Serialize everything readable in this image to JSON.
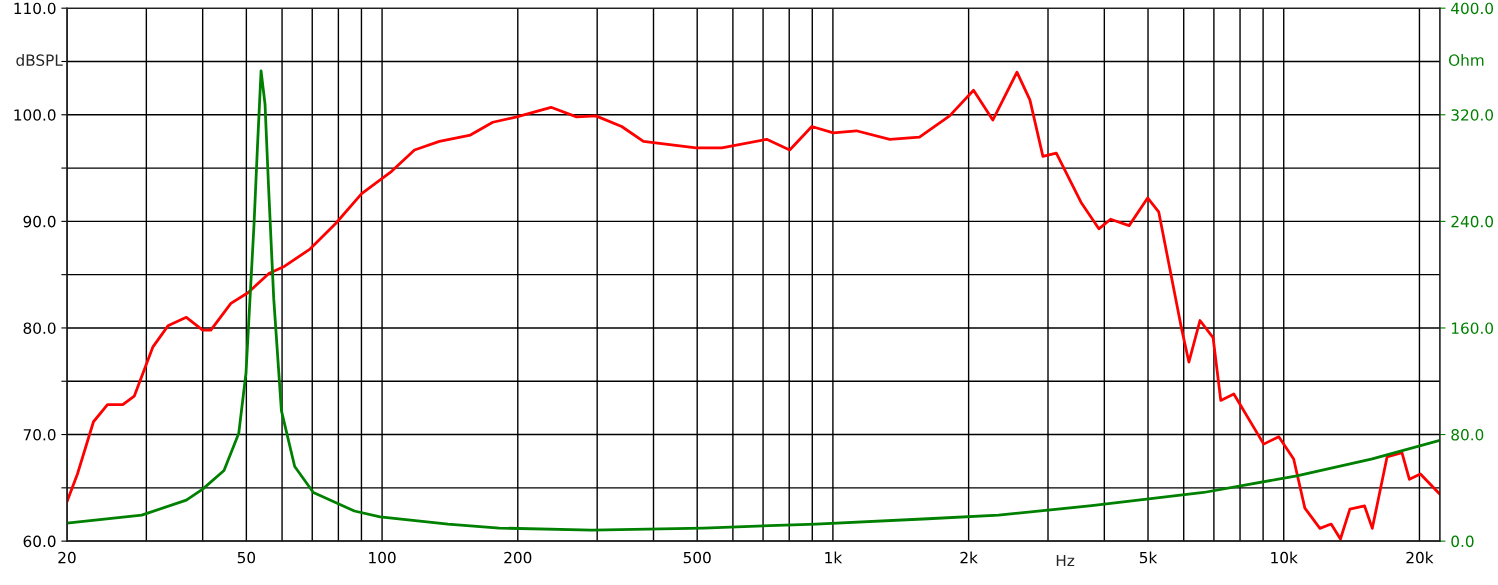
{
  "chart_data": {
    "type": "line",
    "xlabel": "Hz",
    "ylabel": "dBSPL",
    "y2label": "Ohm",
    "log": "x",
    "grid": true,
    "line_style": "solid",
    "xlim": [
      20,
      22200
    ],
    "xticks": [
      20,
      {
        "value": 30,
        "label": null
      },
      {
        "value": 40,
        "label": null
      },
      50,
      {
        "value": 60,
        "label": null
      },
      {
        "value": 70,
        "label": null
      },
      {
        "value": 80,
        "label": null
      },
      {
        "value": 90,
        "label": null
      },
      100,
      200,
      {
        "value": 300,
        "label": null
      },
      {
        "value": 400,
        "label": null
      },
      500,
      {
        "value": 600,
        "label": null
      },
      {
        "value": 700,
        "label": null
      },
      {
        "value": 800,
        "label": null
      },
      {
        "value": 900,
        "label": null
      },
      {
        "value": 1000,
        "label": "1k"
      },
      {
        "value": 2000,
        "label": "2k"
      },
      {
        "value": 3000,
        "label": null
      },
      {
        "value": 4000,
        "label": null
      },
      {
        "value": 5000,
        "label": "5k"
      },
      {
        "value": 6000,
        "label": null
      },
      {
        "value": 7000,
        "label": null
      },
      {
        "value": 8000,
        "label": null
      },
      {
        "value": 9000,
        "label": null
      },
      {
        "value": 10000,
        "label": "10k"
      },
      {
        "value": 20000,
        "label": "20k"
      }
    ],
    "ylim": [
      60,
      110
    ],
    "yticks": [
      {
        "value": 60,
        "label": "60.0"
      },
      {
        "value": 65,
        "label": null
      },
      {
        "value": 70,
        "label": "70.0"
      },
      {
        "value": 75,
        "label": null
      },
      {
        "value": 80,
        "label": "80.0"
      },
      {
        "value": 85,
        "label": null
      },
      {
        "value": 90,
        "label": "90.0"
      },
      {
        "value": 95,
        "label": null
      },
      {
        "value": 100,
        "label": "100.0"
      },
      {
        "value": 105,
        "label": null
      },
      {
        "value": 110,
        "label": "110.0"
      }
    ],
    "y2lim": [
      0,
      400
    ],
    "y2ticks": [
      {
        "value": 0,
        "label": "0.0"
      },
      {
        "value": 80,
        "label": "80.0"
      },
      {
        "value": 160,
        "label": "160.0"
      },
      {
        "value": 240,
        "label": "240.0"
      },
      {
        "value": 320,
        "label": "320.0"
      },
      {
        "value": 400,
        "label": "400.0"
      }
    ],
    "series": [
      {
        "color": "#ff0000",
        "x": [
          20,
          21.1,
          22.9,
          24.6,
          26.6,
          28.2,
          31.0,
          33.5,
          36.8,
          40,
          41.7,
          46.2,
          50.4,
          56.1,
          60.8,
          69.2,
          78.9,
          90.1,
          105,
          118,
          134,
          157,
          176,
          199,
          237,
          270,
          298,
          340,
          380,
          497,
          567,
          713,
          802,
          898,
          1002,
          1127,
          1337,
          1556,
          1815,
          2051,
          2263,
          2560,
          2735,
          2923,
          3130,
          3550,
          3890,
          4130,
          4540,
          4990,
          5280,
          5930,
          6160,
          6520,
          6970,
          7250,
          7750,
          9030,
          9750,
          10520,
          11140,
          12030,
          12740,
          13360,
          14020,
          15110,
          15720,
          16950,
          18290,
          19000,
          20100,
          22200
        ],
        "values": [
          63.7,
          66.3,
          71.2,
          72.8,
          72.8,
          73.6,
          78.2,
          80.2,
          81.0,
          79.8,
          79.8,
          82.3,
          83.3,
          85.1,
          85.8,
          87.4,
          89.8,
          92.6,
          94.7,
          96.7,
          97.5,
          98.1,
          99.3,
          99.8,
          100.7,
          99.8,
          99.9,
          98.9,
          97.5,
          96.9,
          96.9,
          97.7,
          96.7,
          98.9,
          98.3,
          98.5,
          97.7,
          97.9,
          99.9,
          102.3,
          99.5,
          104.0,
          101.4,
          96.1,
          96.4,
          91.8,
          89.3,
          90.2,
          89.6,
          92.2,
          90.9,
          80.0,
          76.8,
          80.7,
          79.1,
          73.2,
          73.8,
          69.1,
          69.8,
          67.7,
          63.1,
          61.2,
          61.6,
          60.2,
          63.0,
          63.3,
          61.2,
          67.9,
          68.3,
          65.8,
          66.3,
          64.4
        ]
      },
      {
        "color": "#008000",
        "axis": "y2",
        "x": [
          20,
          29.3,
          36.8,
          40,
          44.6,
          48.1,
          49.9,
          52.0,
          52.9,
          53.9,
          55.0,
          56.0,
          57.5,
          59.8,
          64.0,
          70.4,
          86.8,
          99,
          140,
          182,
          292,
          516,
          916,
          1625,
          2330,
          3750,
          6640,
          10690,
          15720,
          22200
        ],
        "values": [
          13.5,
          19.5,
          30.8,
          39,
          53,
          81,
          126,
          238,
          295,
          353,
          328,
          266,
          182,
          98,
          56,
          36.5,
          22.6,
          18.2,
          12.8,
          9.8,
          8.3,
          9.8,
          12.8,
          16.8,
          19.5,
          26.6,
          36.5,
          49,
          61.7,
          75.7
        ]
      }
    ]
  }
}
